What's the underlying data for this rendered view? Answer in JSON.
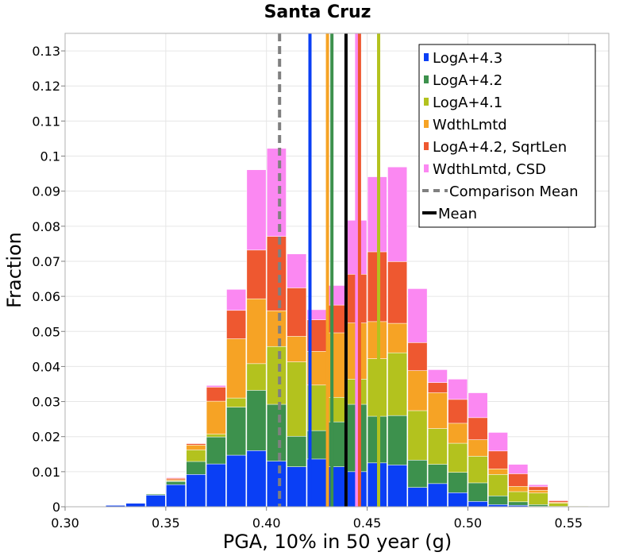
{
  "chart_data": {
    "type": "bar",
    "title": "Santa Cruz",
    "xlabel": "PGA, 10% in 50 year (g)",
    "ylabel": "Fraction",
    "xlim": [
      0.3,
      0.57
    ],
    "ylim": [
      0,
      0.135
    ],
    "grid": true,
    "legend_position": "top-right",
    "bin_width": 0.01,
    "bin_centers": [
      0.305,
      0.315,
      0.325,
      0.335,
      0.345,
      0.355,
      0.365,
      0.375,
      0.385,
      0.395,
      0.405,
      0.415,
      0.425,
      0.435,
      0.445,
      0.455,
      0.465,
      0.475,
      0.485,
      0.495,
      0.505,
      0.515,
      0.525,
      0.535,
      0.545,
      0.555,
      0.565
    ],
    "stack_order_bottom_to_top": [
      "LogA+4.3",
      "LogA+4.2",
      "LogA+4.1",
      "WdthLmtd",
      "LogA+4.2, SqrtLen",
      "WdthLmtd, CSD"
    ],
    "cumulative_note": "values are stacked cumulative tops per bin",
    "series": [
      {
        "name": "LogA+4.3",
        "color": "#0a3ff5",
        "mean": 0.4216,
        "values": [
          0.0,
          0.0001,
          0.0004,
          0.001,
          0.0033,
          0.0063,
          0.0092,
          0.0122,
          0.0147,
          0.016,
          0.013,
          0.0114,
          0.0136,
          0.0114,
          0.01,
          0.0125,
          0.0119,
          0.0055,
          0.0066,
          0.004,
          0.0015,
          0.0006,
          0.0004,
          0.0001,
          0.0,
          0.0,
          0.0
        ]
      },
      {
        "name": "LogA+4.2",
        "color": "#3d914d",
        "mean": 0.4325,
        "values": [
          0.0,
          0.0001,
          0.0004,
          0.001,
          0.0036,
          0.0072,
          0.0129,
          0.0199,
          0.0284,
          0.0332,
          0.0292,
          0.0201,
          0.0217,
          0.0242,
          0.0292,
          0.0258,
          0.026,
          0.0133,
          0.0121,
          0.0098,
          0.0068,
          0.0031,
          0.0014,
          0.0006,
          0.0001,
          0.0,
          0.0
        ]
      },
      {
        "name": "LogA+4.1",
        "color": "#b3c21e",
        "mean": 0.4557,
        "values": [
          0.0,
          0.0001,
          0.0004,
          0.001,
          0.0037,
          0.0074,
          0.0162,
          0.0207,
          0.031,
          0.0408,
          0.0457,
          0.0413,
          0.0347,
          0.0312,
          0.0364,
          0.0422,
          0.0439,
          0.0274,
          0.0223,
          0.0181,
          0.0144,
          0.0092,
          0.0043,
          0.0039,
          0.001,
          0.0002,
          0.0
        ]
      },
      {
        "name": "WdthLmtd",
        "color": "#f6a325",
        "mean": 0.4303,
        "values": [
          0.0,
          0.0001,
          0.0004,
          0.001,
          0.0037,
          0.0077,
          0.0176,
          0.0301,
          0.0479,
          0.0593,
          0.0559,
          0.0486,
          0.0443,
          0.0496,
          0.0524,
          0.0528,
          0.0523,
          0.0388,
          0.0325,
          0.0238,
          0.0191,
          0.0108,
          0.0058,
          0.0047,
          0.0013,
          0.0002,
          0.0
        ]
      },
      {
        "name": "LogA+4.2, SqrtLen",
        "color": "#ee5830",
        "mean": 0.4462,
        "values": [
          0.0,
          0.0001,
          0.0004,
          0.001,
          0.0038,
          0.0081,
          0.018,
          0.0341,
          0.056,
          0.0732,
          0.0771,
          0.0624,
          0.0533,
          0.0575,
          0.0663,
          0.0727,
          0.0699,
          0.0468,
          0.0354,
          0.0306,
          0.0254,
          0.0159,
          0.0094,
          0.0057,
          0.0017,
          0.0003,
          0.0
        ]
      },
      {
        "name": "WdthLmtd, CSD",
        "color": "#fb88f2",
        "mean": 0.4448,
        "values": [
          0.0,
          0.0001,
          0.0004,
          0.001,
          0.0038,
          0.0083,
          0.0181,
          0.0346,
          0.062,
          0.0961,
          0.1022,
          0.0721,
          0.0562,
          0.0631,
          0.0817,
          0.0941,
          0.0969,
          0.0622,
          0.0391,
          0.0364,
          0.0325,
          0.0212,
          0.0121,
          0.0063,
          0.0019,
          0.0004,
          0.0
        ]
      }
    ],
    "reference_lines": [
      {
        "name": "Comparison Mean",
        "x": 0.4065,
        "color": "#808080",
        "style": "dashed"
      },
      {
        "name": "Mean",
        "x": 0.4395,
        "color": "#000000",
        "style": "solid"
      }
    ],
    "x_ticks": [
      "0.30",
      "0.35",
      "0.40",
      "0.45",
      "0.50",
      "0.55"
    ],
    "x_tick_values": [
      0.3,
      0.35,
      0.4,
      0.45,
      0.5,
      0.55
    ],
    "y_ticks": [
      "0",
      "0.01",
      "0.02",
      "0.03",
      "0.04",
      "0.05",
      "0.06",
      "0.07",
      "0.08",
      "0.09",
      "0.1",
      "0.11",
      "0.12",
      "0.13"
    ],
    "y_tick_values": [
      0,
      0.01,
      0.02,
      0.03,
      0.04,
      0.05,
      0.06,
      0.07,
      0.08,
      0.09,
      0.1,
      0.11,
      0.12,
      0.13
    ],
    "legend_entries": [
      "LogA+4.3",
      "LogA+4.2",
      "LogA+4.1",
      "WdthLmtd",
      "LogA+4.2, SqrtLen",
      "WdthLmtd, CSD",
      "Comparison Mean",
      "Mean"
    ]
  }
}
